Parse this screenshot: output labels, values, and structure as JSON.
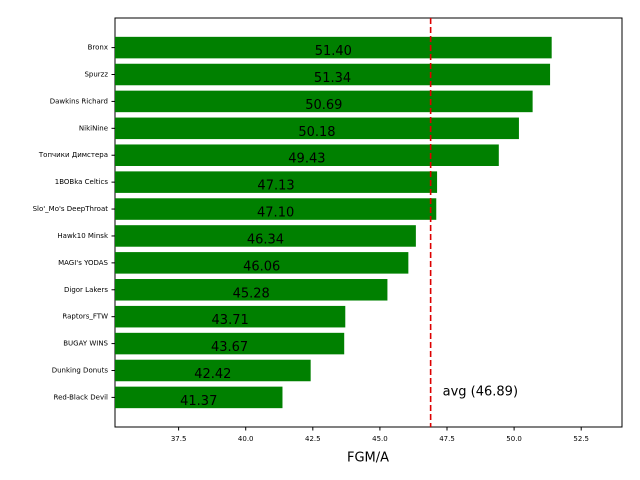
{
  "chart_data": {
    "type": "barh",
    "xlabel": "FGM/A",
    "categories": [
      "Bronx",
      "Spurzz",
      "Dawkins Richard",
      "NikiNine",
      "Топчики Димстера",
      "1BOBka Celtics",
      "Slo'_Mo's DeepThroat",
      "Hawk10 Minsk",
      "MAGI's YODAS",
      "Digor Lakers",
      "Raptors_FTW",
      "BUGAY WINS",
      "Dunking Donuts",
      "Red-Black Devil"
    ],
    "values": [
      51.4,
      51.34,
      50.69,
      50.18,
      49.43,
      47.13,
      47.1,
      46.34,
      46.06,
      45.28,
      43.71,
      43.67,
      42.42,
      41.37
    ],
    "value_labels": [
      "51.40",
      "51.34",
      "50.69",
      "50.18",
      "49.43",
      "47.13",
      "47.10",
      "46.34",
      "46.06",
      "45.28",
      "43.71",
      "43.67",
      "42.42",
      "41.37"
    ],
    "color": "#008000",
    "xlim": [
      35.13,
      54.02
    ],
    "xticks": [
      37.5,
      {
        "value": 40,
        "label": "40.0"
      },
      42.5,
      {
        "value": 45,
        "label": "45.0"
      },
      47.5,
      {
        "value": 50,
        "label": "50.0"
      },
      52.5
    ],
    "avg_line": {
      "value": 46.89,
      "label": "avg (46.89)",
      "color": "#dd0000"
    }
  }
}
